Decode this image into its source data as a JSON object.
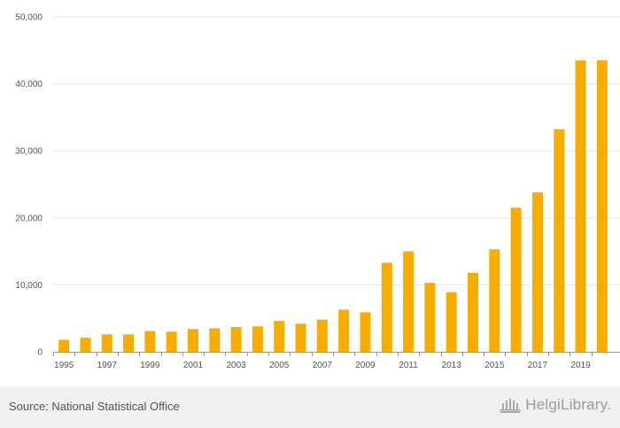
{
  "chart_data": {
    "type": "bar",
    "categories": [
      "1995",
      "1996",
      "1997",
      "1998",
      "1999",
      "2000",
      "2001",
      "2002",
      "2003",
      "2004",
      "2005",
      "2006",
      "2007",
      "2008",
      "2009",
      "2010",
      "2011",
      "2012",
      "2013",
      "2014",
      "2015",
      "2016",
      "2017",
      "2018",
      "2019",
      "2020"
    ],
    "values": [
      1800,
      2100,
      2600,
      2600,
      3100,
      3000,
      3400,
      3500,
      3700,
      3800,
      4600,
      4200,
      4800,
      6300,
      5900,
      13300,
      15000,
      10300,
      8900,
      11800,
      15300,
      21500,
      23800,
      33200,
      43500,
      43500
    ],
    "xtick_labels": [
      "1995",
      "1997",
      "1999",
      "2001",
      "2003",
      "2005",
      "2007",
      "2009",
      "2011",
      "2013",
      "2015",
      "2017",
      "2019"
    ],
    "yticks": [
      0,
      10000,
      20000,
      30000,
      40000,
      50000
    ],
    "ytick_labels": [
      "0",
      "10,000",
      "20,000",
      "30,000",
      "40,000",
      "50,000"
    ],
    "ylim": [
      0,
      50000
    ],
    "title": "",
    "xlabel": "",
    "ylabel": "",
    "bar_color": "#f7ad00",
    "grid": true
  },
  "footer": {
    "source": "Source: National Statistical Office",
    "logo_text": "HelgiLibrary."
  },
  "colors": {
    "grid": "#e3e3e3",
    "axis": "#999999",
    "text": "#555555",
    "footer_bg": "#f0f0f0"
  }
}
